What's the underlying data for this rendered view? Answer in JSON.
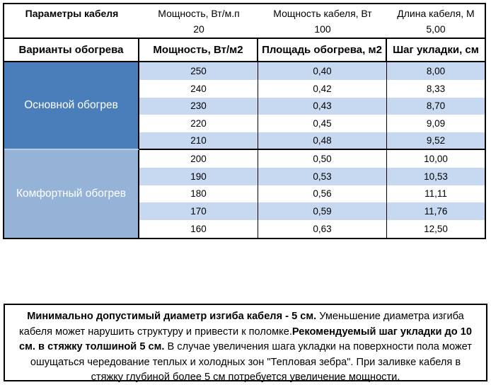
{
  "cable_params": {
    "title": "Параметры кабеля",
    "items": [
      {
        "label": "Мощность, Вт/м.п",
        "value": "20"
      },
      {
        "label": "Мощность кабеля, Вт",
        "value": "100"
      },
      {
        "label": "Длина кабеля, М",
        "value": "5,00"
      }
    ]
  },
  "heating_table": {
    "headers": {
      "variants": "Варианты обогрева",
      "power": "Мощность, Вт/м2",
      "area": "Площадь обогрева, м2",
      "step": "Шаг укладки, см"
    },
    "sections": [
      {
        "label": "Основной обогрев",
        "rows": [
          {
            "power": "250",
            "area": "0,40",
            "step": "8,00"
          },
          {
            "power": "240",
            "area": "0,42",
            "step": "8,33"
          },
          {
            "power": "230",
            "area": "0,43",
            "step": "8,70"
          },
          {
            "power": "220",
            "area": "0,45",
            "step": "9,09"
          },
          {
            "power": "210",
            "area": "0,48",
            "step": "9,52"
          }
        ]
      },
      {
        "label": "Комфортный обогрев",
        "rows": [
          {
            "power": "200",
            "area": "0,50",
            "step": "10,00"
          },
          {
            "power": "190",
            "area": "0,53",
            "step": "10,53"
          },
          {
            "power": "180",
            "area": "0,56",
            "step": "11,11"
          },
          {
            "power": "170",
            "area": "0,59",
            "step": "11,76"
          },
          {
            "power": "160",
            "area": "0,63",
            "step": "12,50"
          }
        ]
      }
    ]
  },
  "note": {
    "segments": [
      {
        "bold": true,
        "text": "Минимально допустимый диаметр изгиба кабеля - 5 см."
      },
      {
        "bold": false,
        "text": "  Уменьшение диаметра изгиба кабеля может нарушить структуру и привести к поломке."
      },
      {
        "bold": true,
        "text": "Рекомендуемый шаг укладки до 10 см. в стяжку толшиной 5 см."
      },
      {
        "bold": false,
        "text": " В  случае увеличения шага укладки на поверхности пола может ошущаться чередование теплых и холодных зон \"Тепловая зебра\". При заливке кабеля в стяжку глубиной более 5 см потребуется увеличение мощности."
      }
    ]
  },
  "colors": {
    "primary_section": "#4A7EBB",
    "comfort_section": "#95B3D7",
    "row_stripe": "#C6D9F1",
    "border": "#000000"
  }
}
